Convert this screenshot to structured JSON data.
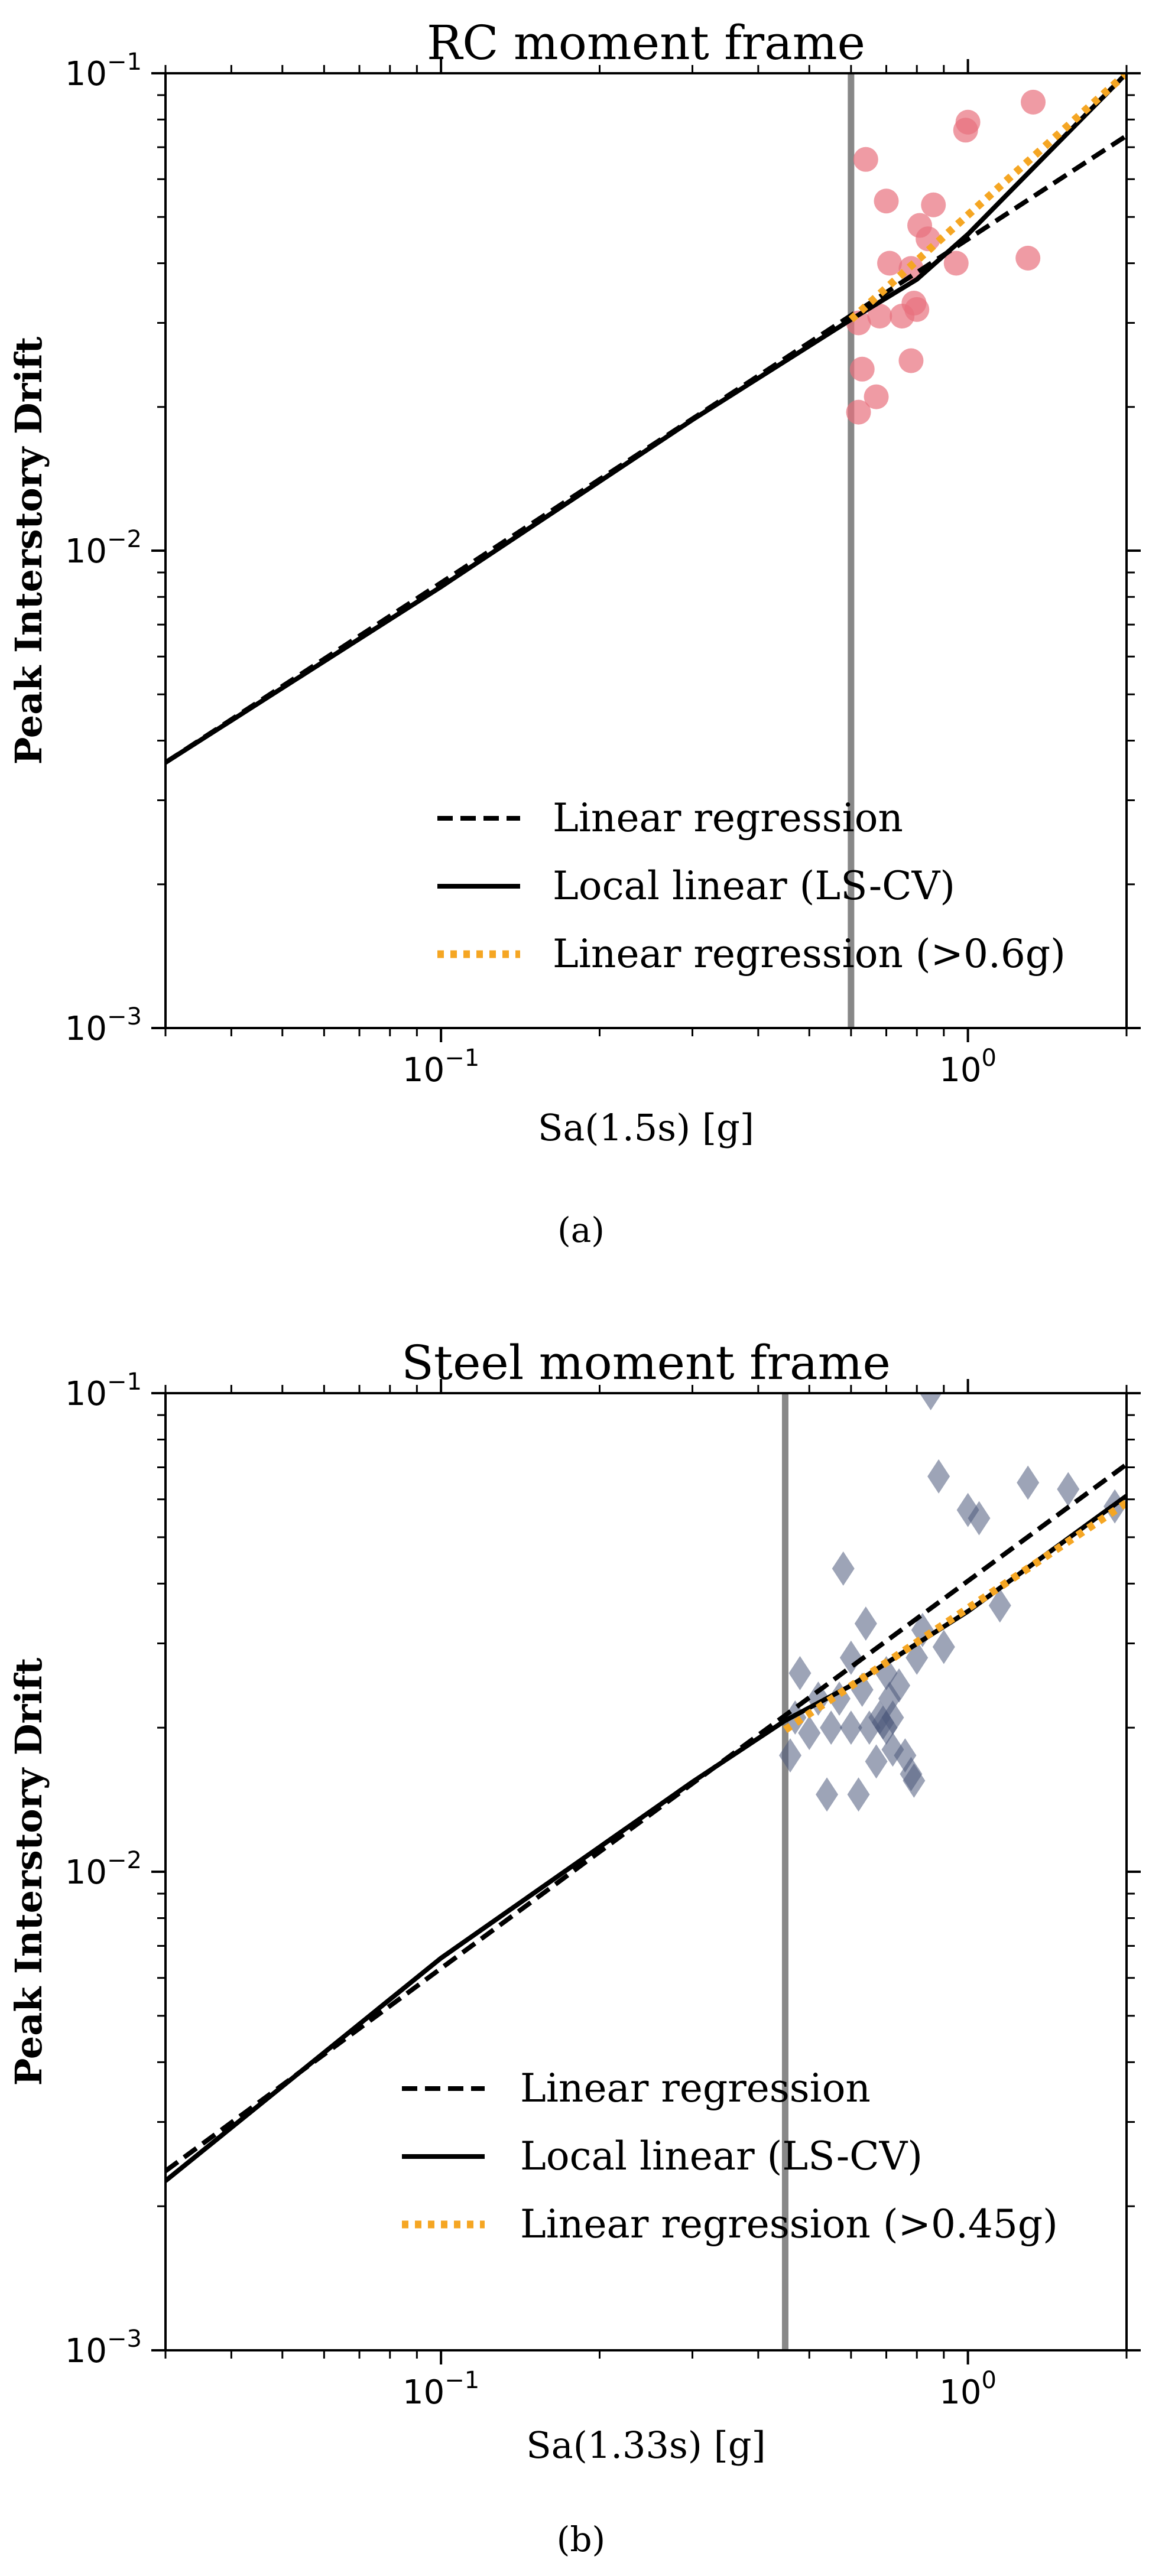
{
  "chart_data": [
    {
      "type": "scatter",
      "panel_caption": "(a)",
      "title": "RC moment frame",
      "xlabel": "Sa(1.5s) [g]",
      "ylabel": "Peak Interstory Drift",
      "xscale": "log",
      "yscale": "log",
      "xlim": [
        0.03,
        2.0
      ],
      "ylim": [
        0.001,
        0.1
      ],
      "x_ticks": [
        {
          "value": 0.1,
          "base": "10",
          "exp": "−1"
        },
        {
          "value": 1.0,
          "base": "10",
          "exp": "0"
        }
      ],
      "y_ticks": [
        {
          "value": 0.001,
          "base": "10",
          "exp": "−3"
        },
        {
          "value": 0.01,
          "base": "10",
          "exp": "−2"
        },
        {
          "value": 0.1,
          "base": "10",
          "exp": "−1"
        }
      ],
      "threshold_x": 0.6,
      "threshold_color": "#888888",
      "points": {
        "marker": "circle",
        "color": "#e8707e",
        "x": [
          0.64,
          0.63,
          0.62,
          0.62,
          0.7,
          0.71,
          0.68,
          0.67,
          0.75,
          0.78,
          0.78,
          0.8,
          0.81,
          0.79,
          0.86,
          0.84,
          0.95,
          1.0,
          0.99,
          1.33,
          1.3
        ],
        "y": [
          0.066,
          0.024,
          0.0195,
          0.03,
          0.054,
          0.04,
          0.031,
          0.021,
          0.031,
          0.025,
          0.039,
          0.032,
          0.048,
          0.033,
          0.053,
          0.045,
          0.04,
          0.079,
          0.076,
          0.087,
          0.041
        ]
      },
      "series": [
        {
          "name": "Linear regression",
          "style": "dashed",
          "color": "#000000",
          "x": [
            0.03,
            2.0
          ],
          "y": [
            0.0036,
            0.074
          ]
        },
        {
          "name": "Local linear (LS-CV)",
          "style": "solid",
          "color": "#000000",
          "x": [
            0.03,
            0.1,
            0.3,
            0.6,
            0.8,
            1.0,
            2.0
          ],
          "y": [
            0.0036,
            0.0084,
            0.0188,
            0.0305,
            0.037,
            0.046,
            0.1
          ]
        },
        {
          "name": "Linear regression (>0.6g)",
          "style": "dotted",
          "color": "#f5a623",
          "x": [
            0.6,
            2.0
          ],
          "y": [
            0.0305,
            0.1
          ]
        }
      ],
      "legend": {
        "position": "lower-right",
        "entries": [
          "Linear regression",
          "Local linear (LS-CV)",
          "Linear regression (>0.6g)"
        ]
      }
    },
    {
      "type": "scatter",
      "panel_caption": "(b)",
      "title": "Steel moment frame",
      "xlabel": "Sa(1.33s) [g]",
      "ylabel": "Peak Interstory Drift",
      "xscale": "log",
      "yscale": "log",
      "xlim": [
        0.03,
        2.0
      ],
      "ylim": [
        0.001,
        0.1
      ],
      "x_ticks": [
        {
          "value": 0.1,
          "base": "10",
          "exp": "−1"
        },
        {
          "value": 1.0,
          "base": "10",
          "exp": "0"
        }
      ],
      "y_ticks": [
        {
          "value": 0.001,
          "base": "10",
          "exp": "−3"
        },
        {
          "value": 0.01,
          "base": "10",
          "exp": "−2"
        },
        {
          "value": 0.1,
          "base": "10",
          "exp": "−1"
        }
      ],
      "threshold_x": 0.45,
      "threshold_color": "#888888",
      "points": {
        "marker": "diamond",
        "color": "#4d5a7c",
        "x": [
          0.46,
          0.47,
          0.48,
          0.5,
          0.52,
          0.54,
          0.55,
          0.57,
          0.58,
          0.6,
          0.6,
          0.62,
          0.63,
          0.64,
          0.65,
          0.67,
          0.68,
          0.69,
          0.7,
          0.7,
          0.71,
          0.72,
          0.74,
          0.76,
          0.78,
          0.8,
          0.82,
          0.85,
          0.88,
          0.9,
          1.0,
          1.05,
          1.15,
          1.3,
          1.55,
          1.9,
          0.72,
          0.79
        ],
        "y": [
          0.0175,
          0.021,
          0.026,
          0.0195,
          0.023,
          0.0145,
          0.02,
          0.023,
          0.043,
          0.028,
          0.02,
          0.0145,
          0.024,
          0.033,
          0.02,
          0.017,
          0.021,
          0.0205,
          0.02,
          0.026,
          0.023,
          0.018,
          0.0245,
          0.0175,
          0.016,
          0.028,
          0.032,
          0.1,
          0.067,
          0.0295,
          0.057,
          0.0548,
          0.036,
          0.065,
          0.063,
          0.058,
          0.021,
          0.0155
        ]
      },
      "series": [
        {
          "name": "Linear regression",
          "style": "dashed",
          "color": "#000000",
          "x": [
            0.03,
            2.0
          ],
          "y": [
            0.00237,
            0.071
          ]
        },
        {
          "name": "Local linear (LS-CV)",
          "style": "solid",
          "color": "#000000",
          "x": [
            0.03,
            0.1,
            0.3,
            0.45,
            0.6,
            1.0,
            2.0
          ],
          "y": [
            0.00226,
            0.0066,
            0.0154,
            0.0207,
            0.0245,
            0.035,
            0.061
          ]
        },
        {
          "name": "Linear regression (>0.45g)",
          "style": "dotted",
          "color": "#f5a623",
          "x": [
            0.45,
            2.0
          ],
          "y": [
            0.0198,
            0.059
          ]
        }
      ],
      "legend": {
        "position": "lower-right",
        "entries": [
          "Linear regression",
          "Local linear (LS-CV)",
          "Linear regression (>0.45g)"
        ]
      }
    }
  ]
}
